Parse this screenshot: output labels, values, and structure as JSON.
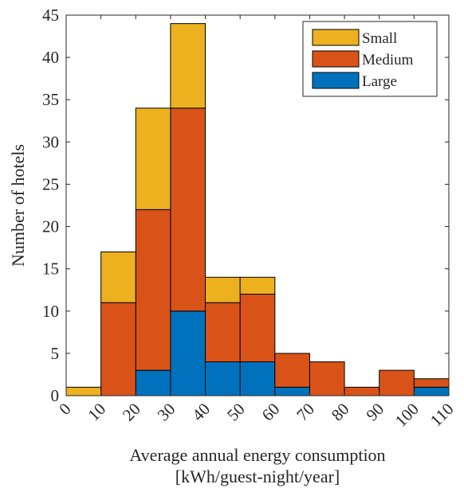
{
  "chart_data": {
    "type": "bar",
    "stacked": true,
    "bin_edges": [
      0,
      10,
      20,
      30,
      40,
      50,
      60,
      70,
      80,
      90,
      100,
      110
    ],
    "x_tick_labels": [
      "0",
      "10",
      "20",
      "30",
      "40",
      "50",
      "60",
      "70",
      "80",
      "90",
      "100",
      "110"
    ],
    "y_tick_labels": [
      "0",
      "5",
      "10",
      "15",
      "20",
      "25",
      "30",
      "35",
      "40",
      "45"
    ],
    "series": [
      {
        "name": "Large",
        "color": "#0072BD",
        "values": [
          0,
          0,
          3,
          10,
          4,
          4,
          1,
          0,
          0,
          0,
          1
        ]
      },
      {
        "name": "Medium",
        "color": "#D95319",
        "values": [
          0,
          11,
          19,
          24,
          7,
          8,
          4,
          4,
          1,
          3,
          1
        ]
      },
      {
        "name": "Small",
        "color": "#EDB120",
        "values": [
          1,
          6,
          12,
          10,
          3,
          2,
          0,
          0,
          0,
          0,
          0
        ]
      }
    ],
    "legend_order": [
      "Small",
      "Medium",
      "Large"
    ],
    "legend_position": "top-right",
    "xlim": [
      0,
      110
    ],
    "ylim": [
      0,
      45
    ],
    "xlabel_line1": "Average annual energy consumption",
    "xlabel_line2": "[kWh/guest-night/year]",
    "ylabel": "Number of hotels",
    "grid": false
  }
}
